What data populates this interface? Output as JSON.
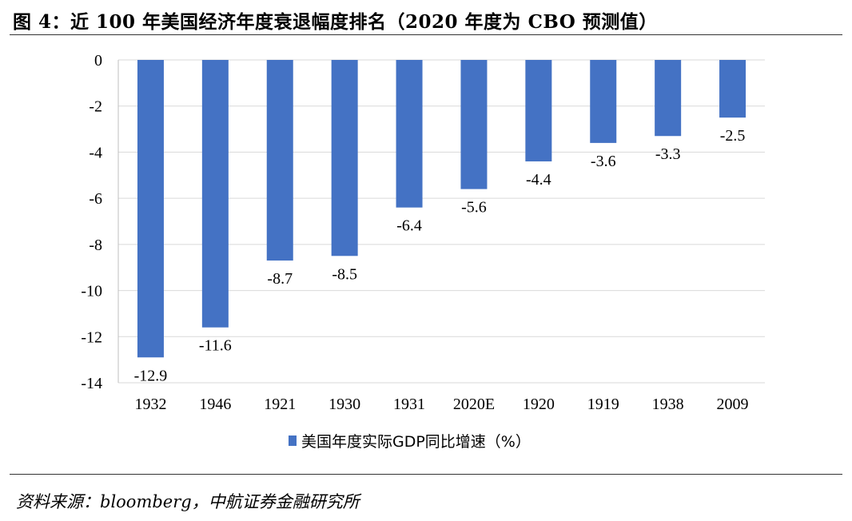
{
  "figure": {
    "title": "图 4：近 100 年美国经济年度衰退幅度排名（2020 年度为 CBO 预测值）",
    "source": "资料来源：bloomberg，中航证券金融研究所"
  },
  "chart_data": {
    "type": "bar",
    "categories": [
      "1932",
      "1946",
      "1921",
      "1930",
      "1931",
      "2020E",
      "1920",
      "1919",
      "1938",
      "2009"
    ],
    "series": [
      {
        "name": "美国年度实际GDP同比增速（%）",
        "values": [
          -12.9,
          -11.6,
          -8.7,
          -8.5,
          -6.4,
          -5.6,
          -4.4,
          -3.6,
          -3.3,
          -2.5
        ],
        "labels": [
          "-12.9",
          "-11.6",
          "-8.7",
          "-8.5",
          "-6.4",
          "-5.6",
          "-4.4",
          "-3.6",
          "-3.3",
          "-2.5"
        ],
        "color": "#4472C4"
      }
    ],
    "ylim": [
      -14,
      0
    ],
    "yticks": [
      0,
      -2,
      -4,
      -6,
      -8,
      -10,
      -12,
      -14
    ],
    "ytick_labels": [
      "0",
      "-2",
      "-4",
      "-6",
      "-8",
      "-10",
      "-12",
      "-14"
    ],
    "grid": true,
    "legend_position": "bottom"
  }
}
